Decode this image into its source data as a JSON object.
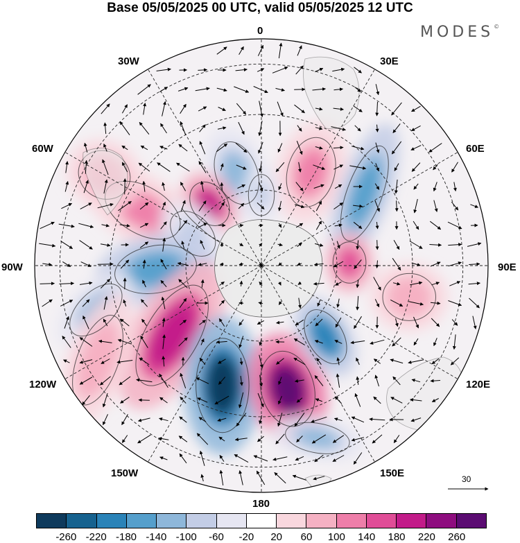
{
  "title": "Base 05/05/2025 00 UTC, valid 05/05/2025 12 UTC",
  "brand": {
    "name": "MODES",
    "mark": "©"
  },
  "longitude_labels": [
    "0",
    "30E",
    "60E",
    "90E",
    "120E",
    "150E",
    "180",
    "150W",
    "120W",
    "90W",
    "60W",
    "30W"
  ],
  "reference_vector": {
    "label": "30"
  },
  "colorbar": {
    "colors": [
      "#0e3a5c",
      "#16628f",
      "#2a83b8",
      "#559fcc",
      "#8eb7da",
      "#c3cde6",
      "#e6e6f2",
      "#ffffff",
      "#f9d7de",
      "#f5b1c3",
      "#ee7ea9",
      "#e04d97",
      "#c21b89",
      "#8e0d7f",
      "#5b0c72"
    ],
    "ticks": [
      "-260",
      "-220",
      "-180",
      "-140",
      "-100",
      "-60",
      "-20",
      "20",
      "60",
      "100",
      "140",
      "180",
      "220",
      "260"
    ]
  },
  "anomaly_centers": [
    {
      "lon": 345,
      "lat": -52,
      "rx": 35,
      "ry": 55,
      "rot": -20,
      "level": 4
    },
    {
      "lon": 28,
      "lat": -48,
      "rx": 40,
      "ry": 60,
      "rot": 15,
      "level": 10
    },
    {
      "lon": 55,
      "lat": -40,
      "rx": 30,
      "ry": 85,
      "rot": 20,
      "level": 3
    },
    {
      "lon": 0,
      "lat": -62,
      "rx": 22,
      "ry": 35,
      "rot": 0,
      "level": 5
    },
    {
      "lon": 320,
      "lat": -58,
      "rx": 30,
      "ry": 40,
      "rot": -35,
      "level": 12
    },
    {
      "lon": 295,
      "lat": -38,
      "rx": 40,
      "ry": 70,
      "rot": -60,
      "level": 10
    },
    {
      "lon": 295,
      "lat": -60,
      "rx": 30,
      "ry": 45,
      "rot": -45,
      "level": 5
    },
    {
      "lon": 268,
      "lat": -48,
      "rx": 40,
      "ry": 70,
      "rot": 80,
      "level": 3
    },
    {
      "lon": 232,
      "lat": -45,
      "rx": 45,
      "ry": 95,
      "rot": 30,
      "level": 12
    },
    {
      "lon": 198,
      "lat": -40,
      "rx": 45,
      "ry": 80,
      "rot": 0,
      "level": 0
    },
    {
      "lon": 168,
      "lat": -40,
      "rx": 45,
      "ry": 65,
      "rot": -15,
      "level": 14
    },
    {
      "lon": 138,
      "lat": -52,
      "rx": 30,
      "ry": 50,
      "rot": -30,
      "level": 2
    },
    {
      "lon": 102,
      "lat": -30,
      "rx": 45,
      "ry": 40,
      "rot": 0,
      "level": 9
    },
    {
      "lon": 162,
      "lat": -18,
      "rx": 55,
      "ry": 25,
      "rot": 10,
      "level": 4
    },
    {
      "lon": 88,
      "lat": -55,
      "rx": 28,
      "ry": 35,
      "rot": 0,
      "level": 11
    },
    {
      "lon": 255,
      "lat": -22,
      "rx": 30,
      "ry": 55,
      "rot": 45,
      "level": 4
    },
    {
      "lon": 240,
      "lat": -15,
      "rx": 35,
      "ry": 80,
      "rot": 20,
      "level": 9
    },
    {
      "lon": 300,
      "lat": -18,
      "rx": 45,
      "ry": 40,
      "rot": 30,
      "level": 9
    }
  ]
}
